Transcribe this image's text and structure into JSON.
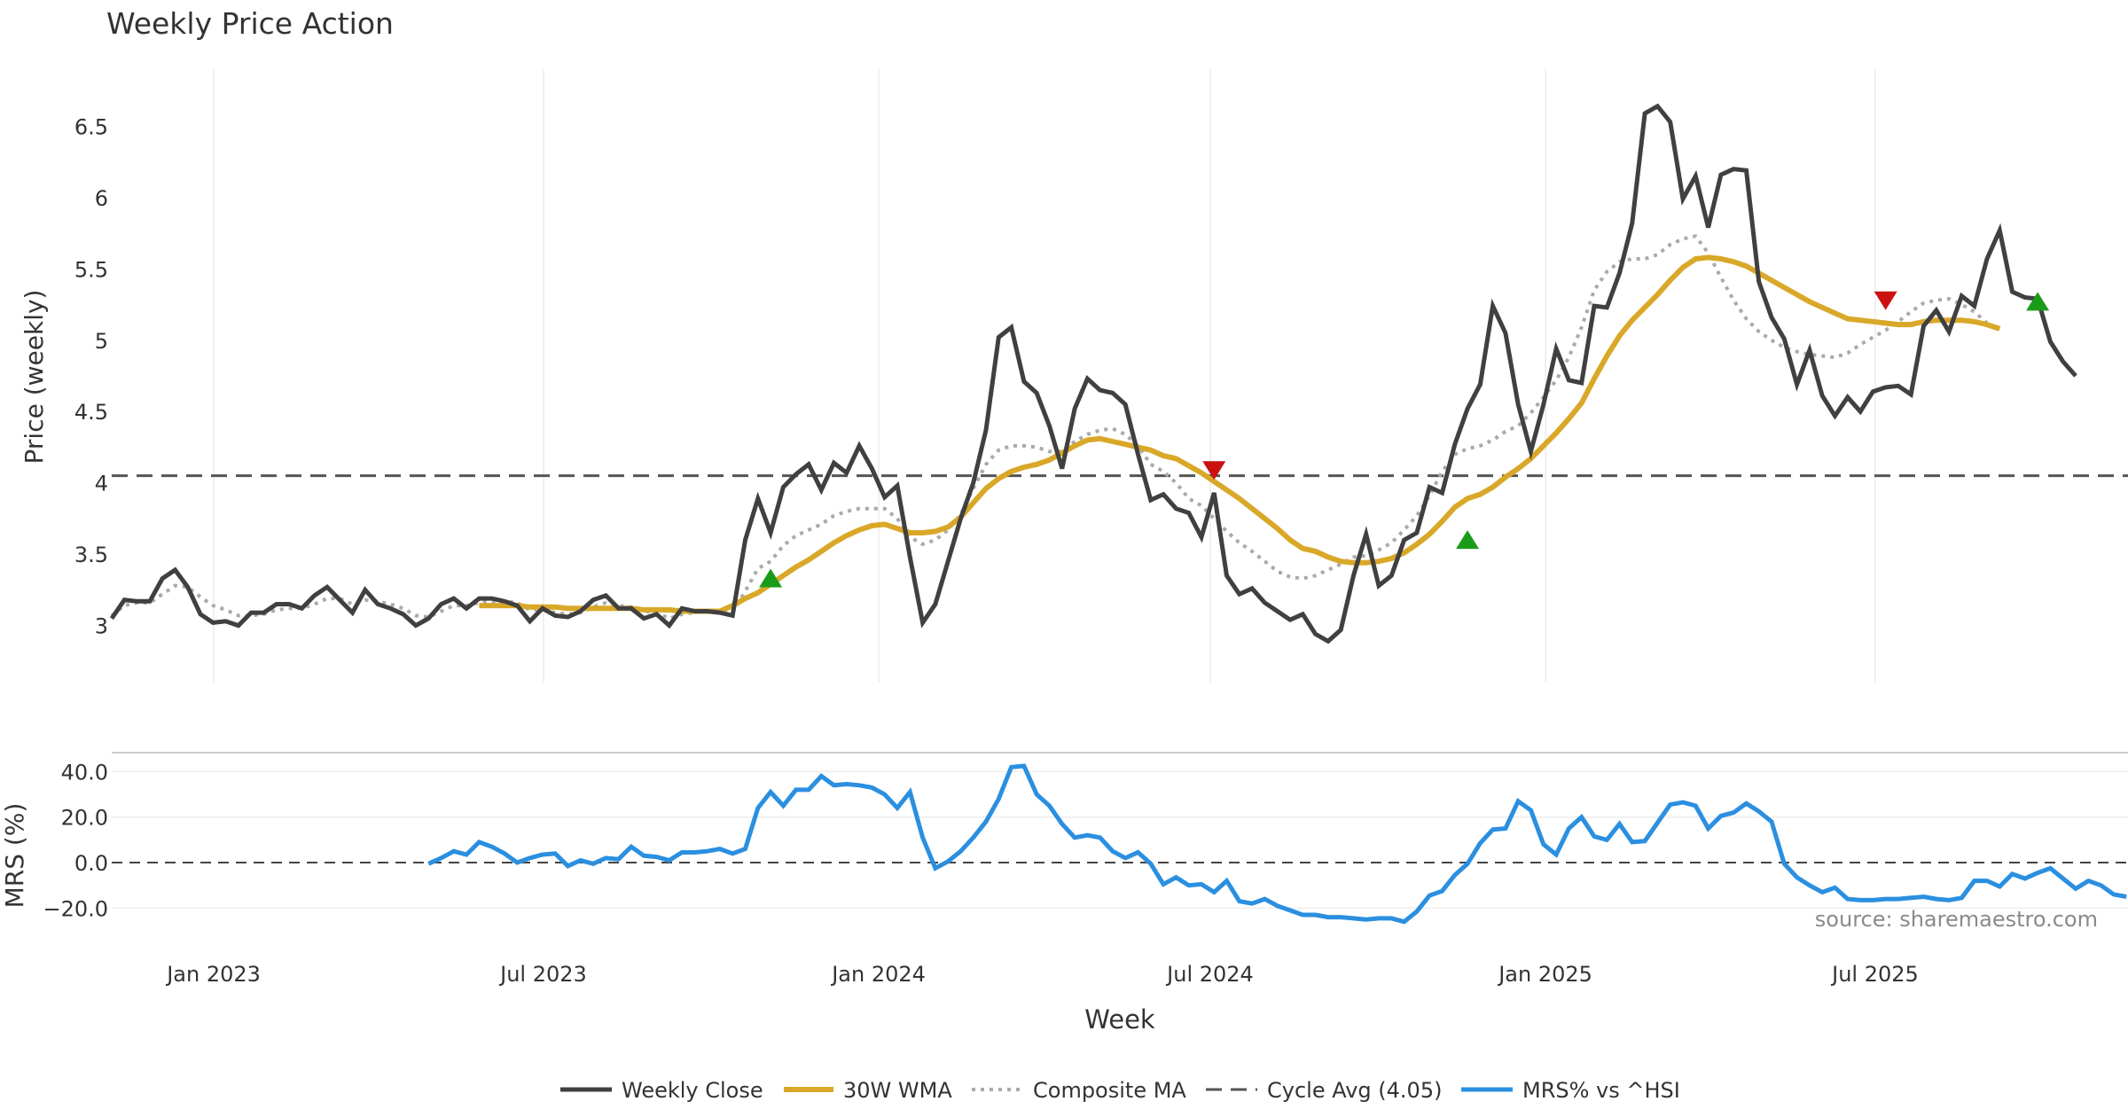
{
  "chart_data": {
    "title": "Weekly Price Action",
    "source_note": "source: sharemaestro.com",
    "xlabel": "Week",
    "x_ticks": [
      "Jan 2023",
      "Jul 2023",
      "Jan 2024",
      "Jul 2024",
      "Jan 2025",
      "Jul 2025"
    ],
    "x_start": "2022-11-06",
    "x_end": "2025-10-19",
    "price_panel": {
      "type": "line",
      "ylabel": "Price (weekly)",
      "ylim": [
        2.6,
        6.9
      ],
      "yticks": [
        "3",
        "3.5",
        "4",
        "4.5",
        "5",
        "5.5",
        "6",
        "6.5"
      ],
      "series": [
        {
          "name": "Weekly Close",
          "color": "#404040",
          "start_index": 0,
          "values": [
            3.05,
            3.18,
            3.17,
            3.17,
            3.33,
            3.39,
            3.27,
            3.08,
            3.02,
            3.03,
            3.0,
            3.09,
            3.09,
            3.15,
            3.15,
            3.12,
            3.21,
            3.27,
            3.18,
            3.09,
            3.25,
            3.15,
            3.12,
            3.08,
            3.0,
            3.05,
            3.15,
            3.19,
            3.12,
            3.19,
            3.19,
            3.17,
            3.14,
            3.03,
            3.12,
            3.07,
            3.06,
            3.1,
            3.18,
            3.21,
            3.12,
            3.12,
            3.05,
            3.08,
            3.0,
            3.12,
            3.1,
            3.1,
            3.09,
            3.07,
            3.6,
            3.89,
            3.65,
            3.97,
            4.06,
            4.13,
            3.95,
            4.14,
            4.07,
            4.26,
            4.1,
            3.9,
            3.98,
            3.48,
            3.02,
            3.15,
            3.45,
            3.75,
            4.0,
            4.37,
            5.02,
            5.09,
            4.71,
            4.63,
            4.4,
            4.1,
            4.52,
            4.73,
            4.65,
            4.63,
            4.55,
            4.2,
            3.88,
            3.92,
            3.82,
            3.79,
            3.62,
            3.93,
            3.35,
            3.22,
            3.26,
            3.16,
            3.1,
            3.04,
            3.08,
            2.94,
            2.89,
            2.97,
            3.35,
            3.64,
            3.28,
            3.35,
            3.6,
            3.65,
            3.97,
            3.93,
            4.27,
            4.52,
            4.69,
            5.24,
            5.05,
            4.55,
            4.22,
            4.55,
            4.94,
            4.72,
            4.7,
            5.24,
            5.23,
            5.47,
            5.82,
            6.59,
            6.64,
            6.53,
            5.99,
            6.15,
            5.79,
            6.16,
            6.2,
            6.19,
            5.41,
            5.16,
            5.01,
            4.69,
            4.93,
            4.61,
            4.47,
            4.6,
            4.5,
            4.64,
            4.67,
            4.68,
            4.62,
            5.1,
            5.21,
            5.06,
            5.31,
            5.24,
            5.57,
            5.77,
            5.34,
            5.3,
            5.29,
            4.99,
            4.85,
            4.75
          ]
        },
        {
          "name": "30W WMA",
          "color": "#d9a829",
          "start_index": 29,
          "values": [
            3.14,
            3.14,
            3.14,
            3.14,
            3.13,
            3.13,
            3.13,
            3.12,
            3.12,
            3.12,
            3.12,
            3.12,
            3.12,
            3.11,
            3.11,
            3.11,
            3.1,
            3.1,
            3.1,
            3.1,
            3.14,
            3.19,
            3.23,
            3.29,
            3.35,
            3.41,
            3.46,
            3.52,
            3.58,
            3.63,
            3.67,
            3.7,
            3.71,
            3.68,
            3.65,
            3.65,
            3.66,
            3.69,
            3.76,
            3.86,
            3.96,
            4.03,
            4.08,
            4.11,
            4.13,
            4.16,
            4.21,
            4.26,
            4.3,
            4.31,
            4.29,
            4.27,
            4.25,
            4.23,
            4.19,
            4.17,
            4.12,
            4.07,
            4.01,
            3.95,
            3.89,
            3.82,
            3.75,
            3.68,
            3.6,
            3.54,
            3.52,
            3.48,
            3.45,
            3.44,
            3.44,
            3.45,
            3.47,
            3.51,
            3.57,
            3.64,
            3.73,
            3.83,
            3.89,
            3.92,
            3.97,
            4.04,
            4.1,
            4.17,
            4.26,
            4.35,
            4.45,
            4.56,
            4.73,
            4.89,
            5.03,
            5.14,
            5.23,
            5.32,
            5.42,
            5.51,
            5.57,
            5.58,
            5.57,
            5.55,
            5.52,
            5.47,
            5.42,
            5.37,
            5.32,
            5.27,
            5.23,
            5.19,
            5.15,
            5.14,
            5.13,
            5.12,
            5.11,
            5.11,
            5.13,
            5.14,
            5.14,
            5.14,
            5.13,
            5.11,
            5.08
          ]
        },
        {
          "name": "Composite MA",
          "color": "#aaaaaa",
          "start_index": 0,
          "values": [
            3.07,
            3.14,
            3.16,
            3.16,
            3.22,
            3.28,
            3.27,
            3.2,
            3.14,
            3.11,
            3.07,
            3.07,
            3.08,
            3.11,
            3.12,
            3.12,
            3.15,
            3.19,
            3.19,
            3.15,
            3.18,
            3.17,
            3.15,
            3.12,
            3.07,
            3.06,
            3.1,
            3.14,
            3.14,
            3.16,
            3.17,
            3.17,
            3.16,
            3.11,
            3.11,
            3.09,
            3.08,
            3.09,
            3.13,
            3.16,
            3.14,
            3.13,
            3.1,
            3.09,
            3.05,
            3.08,
            3.09,
            3.1,
            3.1,
            3.09,
            3.24,
            3.4,
            3.45,
            3.56,
            3.63,
            3.67,
            3.71,
            3.77,
            3.8,
            3.82,
            3.82,
            3.82,
            3.75,
            3.62,
            3.57,
            3.6,
            3.67,
            3.78,
            3.96,
            4.13,
            4.23,
            4.26,
            4.26,
            4.25,
            4.22,
            4.22,
            4.29,
            4.34,
            4.37,
            4.38,
            4.34,
            4.26,
            4.13,
            4.08,
            4.0,
            3.89,
            3.84,
            3.75,
            3.66,
            3.58,
            3.52,
            3.45,
            3.38,
            3.34,
            3.33,
            3.35,
            3.39,
            3.43,
            3.48,
            3.49,
            3.53,
            3.58,
            3.67,
            3.77,
            3.91,
            4.08,
            4.2,
            4.24,
            4.26,
            4.3,
            4.36,
            4.4,
            4.49,
            4.6,
            4.72,
            4.88,
            5.09,
            5.35,
            5.48,
            5.55,
            5.57,
            5.57,
            5.6,
            5.67,
            5.71,
            5.73,
            5.61,
            5.44,
            5.28,
            5.15,
            5.06,
            5.0,
            4.95,
            4.92,
            4.9,
            4.89,
            4.88,
            4.91,
            4.97,
            5.02,
            5.07,
            5.13,
            5.2,
            5.26,
            5.28,
            5.29,
            5.25,
            5.2,
            5.12
          ]
        }
      ],
      "reference_line": {
        "name": "Cycle Avg (4.05)",
        "value": 4.05,
        "color": "#555555"
      },
      "signals": [
        {
          "type": "buy",
          "index": 52,
          "value": 3.33,
          "color": "#1a9c1a"
        },
        {
          "type": "sell",
          "index": 87,
          "value": 4.09,
          "color": "#cc1111"
        },
        {
          "type": "buy",
          "index": 107,
          "value": 3.6,
          "color": "#1a9c1a"
        },
        {
          "type": "sell",
          "index": 140,
          "value": 5.28,
          "color": "#cc1111"
        },
        {
          "type": "buy",
          "index": 152,
          "value": 5.27,
          "color": "#1a9c1a"
        }
      ]
    },
    "mrs_panel": {
      "type": "line",
      "ylabel": "MRS (%)",
      "ylim": [
        -30,
        46
      ],
      "yticks": [
        "40.0",
        "20.0",
        "0.0",
        "−20.0"
      ],
      "zero_line": 0,
      "series": [
        {
          "name": "MRS% vs ^HSI",
          "color": "#2b8fe0",
          "start_index": 25,
          "values": [
            -0.5,
            2,
            5,
            3.5,
            9,
            7,
            4,
            0,
            2,
            3.5,
            4,
            -1.5,
            1,
            -0.5,
            2,
            1.5,
            7,
            3,
            2.5,
            1,
            4.5,
            4.5,
            5,
            6,
            4,
            6,
            24,
            31,
            25,
            32,
            32,
            38,
            34,
            34.5,
            34,
            33,
            30,
            24,
            31,
            11,
            -2.5,
            0.5,
            5,
            11,
            18,
            28,
            42,
            42.5,
            30,
            25,
            17,
            11,
            12,
            11,
            5,
            2,
            4.5,
            -0.5,
            -9.5,
            -6.5,
            -10,
            -9.5,
            -13,
            -8,
            -17,
            -18,
            -16,
            -19,
            -21,
            -23,
            -23,
            -24,
            -24,
            -24.5,
            -25,
            -24.5,
            -24.5,
            -26,
            -21.5,
            -14.5,
            -12.5,
            -5.5,
            -0.5,
            8.5,
            14.5,
            15,
            27,
            23,
            8,
            3.5,
            15,
            20,
            11.5,
            10,
            17,
            9,
            9.5,
            17.5,
            25.5,
            26.5,
            25,
            15,
            20.5,
            22,
            26,
            22.5,
            18,
            -0.5,
            -6.5,
            -10,
            -13,
            -11,
            -16,
            -16.5,
            -16.5,
            -16,
            -16,
            -15.5,
            -15,
            -16,
            -16.5,
            -15.5,
            -8,
            -8,
            -10.5,
            -5,
            -7,
            -4.5,
            -2.5,
            -7,
            -11.5,
            -8,
            -10,
            -14,
            -15
          ]
        }
      ]
    },
    "legend": [
      "Weekly Close",
      "30W WMA",
      "Composite MA",
      "Cycle Avg (4.05)",
      "MRS% vs ^HSI"
    ]
  }
}
